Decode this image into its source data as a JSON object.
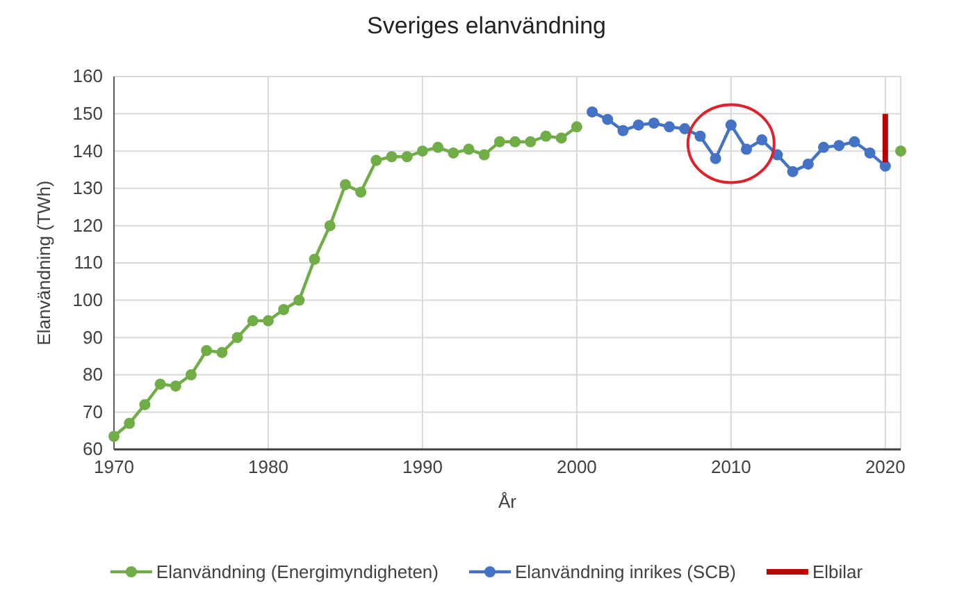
{
  "chart_data": {
    "type": "line",
    "title": "Sveriges elanvändning",
    "xlabel": "År",
    "ylabel": "Elanvändning (TWh)",
    "xlim": [
      1970,
      2021
    ],
    "xticks": [
      1970,
      1980,
      1990,
      2000,
      2010,
      2020
    ],
    "ylim": [
      60,
      160
    ],
    "yticks": [
      60,
      70,
      80,
      90,
      100,
      110,
      120,
      130,
      140,
      150,
      160
    ],
    "grid": true,
    "legend": "bottom",
    "series": [
      {
        "name": "Elanvändning (Energimyndigheten)",
        "color": "#70ad47",
        "marker": "circle",
        "x": [
          1970,
          1971,
          1972,
          1973,
          1974,
          1975,
          1976,
          1977,
          1978,
          1979,
          1980,
          1981,
          1982,
          1983,
          1984,
          1985,
          1986,
          1987,
          1988,
          1989,
          1990,
          1991,
          1992,
          1993,
          1994,
          1995,
          1996,
          1997,
          1998,
          1999,
          2000,
          2001,
          2021
        ],
        "values": [
          63.5,
          67,
          72,
          77.5,
          77,
          80,
          86.5,
          86,
          90,
          94.5,
          94.5,
          97.5,
          100,
          111,
          120,
          131,
          129,
          137.5,
          138.5,
          138.5,
          140,
          141,
          139.5,
          140.5,
          139,
          142.5,
          142.5,
          142.5,
          144,
          143.5,
          146.5,
          null,
          140
        ]
      },
      {
        "name": "Elanvändning inrikes (SCB)",
        "color": "#4472c4",
        "marker": "circle",
        "x": [
          2001,
          2002,
          2003,
          2004,
          2005,
          2006,
          2007,
          2008,
          2009,
          2010,
          2011,
          2012,
          2013,
          2014,
          2015,
          2016,
          2017,
          2018,
          2019,
          2020
        ],
        "values": [
          150.5,
          148.5,
          145.5,
          147,
          147.5,
          146.5,
          146,
          144,
          138,
          147,
          140.5,
          143,
          139,
          134.5,
          136.5,
          141,
          141.5,
          142.5,
          139.5,
          136
        ]
      },
      {
        "name": "Elbilar",
        "color": "#c00000",
        "marker": "none",
        "x": [
          2020,
          2020
        ],
        "values": [
          150,
          137
        ]
      }
    ]
  }
}
